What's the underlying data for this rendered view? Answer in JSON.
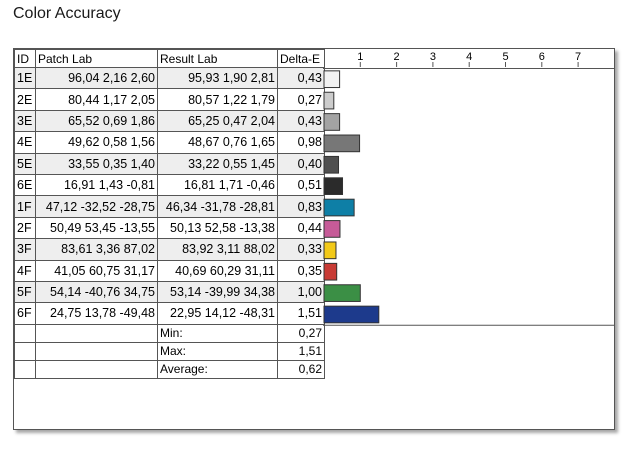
{
  "title": "Color Accuracy",
  "headers": {
    "id": "ID",
    "patch": "Patch Lab",
    "result": "Result Lab",
    "de": "Delta-E"
  },
  "rows": [
    {
      "id": "1E",
      "patch": "96,04   2,16   2,60",
      "result": "95,93   1,90   2,81",
      "de": "0,43",
      "color": "#f2f2f2"
    },
    {
      "id": "2E",
      "patch": "80,44   1,17   2,05",
      "result": "80,57   1,22   1,79",
      "de": "0,27",
      "color": "#cccccc"
    },
    {
      "id": "3E",
      "patch": "65,52   0,69   1,86",
      "result": "65,25   0,47   2,04",
      "de": "0,43",
      "color": "#a3a3a3"
    },
    {
      "id": "4E",
      "patch": "49,62   0,58   1,56",
      "result": "48,67   0,76   1,65",
      "de": "0,98",
      "color": "#777777"
    },
    {
      "id": "5E",
      "patch": "33,55   0,35   1,40",
      "result": "33,22   0,55   1,45",
      "de": "0,40",
      "color": "#4f4f4f"
    },
    {
      "id": "6E",
      "patch": "16,91   1,43  -0,81",
      "result": "16,81   1,71  -0,46",
      "de": "0,51",
      "color": "#2b2b2b"
    },
    {
      "id": "1F",
      "patch": "47,12 -32,52 -28,75",
      "result": "46,34 -31,78 -28,81",
      "de": "0,83",
      "color": "#0e7fa6"
    },
    {
      "id": "2F",
      "patch": "50,49  53,45 -13,55",
      "result": "50,13  52,58 -13,38",
      "de": "0,44",
      "color": "#c65b98"
    },
    {
      "id": "3F",
      "patch": "83,61   3,36  87,02",
      "result": "83,92   3,11  88,02",
      "de": "0,33",
      "color": "#f2c918"
    },
    {
      "id": "4F",
      "patch": "41,05  60,75  31,17",
      "result": "40,69  60,29  31,11",
      "de": "0,35",
      "color": "#c83b35"
    },
    {
      "id": "5F",
      "patch": "54,14 -40,76  34,75",
      "result": "53,14 -39,99  34,38",
      "de": "1,00",
      "color": "#3b8f45"
    },
    {
      "id": "6F",
      "patch": "24,75  13,78 -49,48",
      "result": "22,95  14,12 -48,31",
      "de": "1,51",
      "color": "#1d3a8c"
    }
  ],
  "summary": [
    {
      "label": "Min:",
      "value": "0,27"
    },
    {
      "label": "Max:",
      "value": "1,51"
    },
    {
      "label": "Average:",
      "value": "0,62"
    }
  ],
  "chart_data": {
    "type": "bar",
    "orientation": "horizontal",
    "categories": [
      "1E",
      "2E",
      "3E",
      "4E",
      "5E",
      "6E",
      "1F",
      "2F",
      "3F",
      "4F",
      "5F",
      "6F"
    ],
    "values": [
      0.43,
      0.27,
      0.43,
      0.98,
      0.4,
      0.51,
      0.83,
      0.44,
      0.33,
      0.35,
      1.0,
      1.51
    ],
    "ticks": [
      "1",
      "2",
      "3",
      "4",
      "5",
      "6",
      "7"
    ],
    "xlim": [
      0,
      7.6
    ],
    "grid": false
  }
}
